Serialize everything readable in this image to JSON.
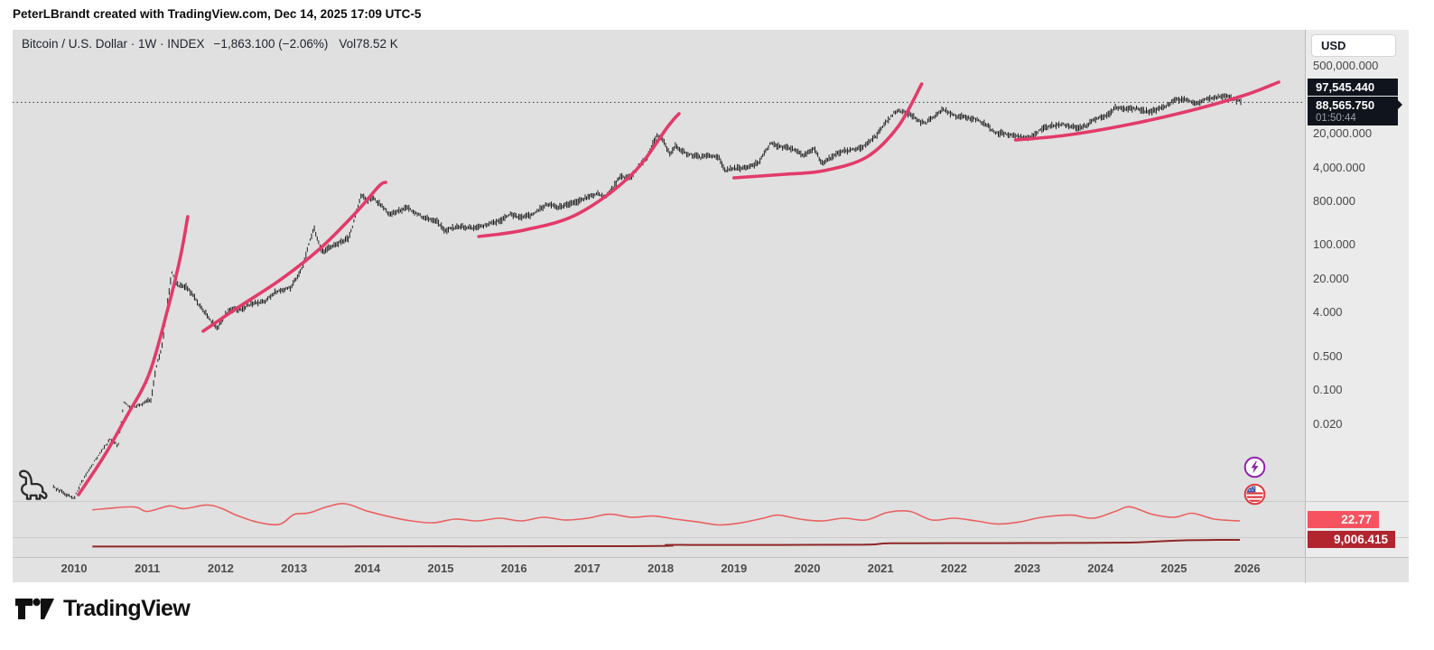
{
  "header": {
    "attribution": "PeterLBrandt created with TradingView.com, Dec 14, 2025 17:09 UTC-5"
  },
  "legend": {
    "title": "Bitcoin / U.S. Dollar · 1W · INDEX",
    "change": "−1,863.100 (−2.06%)",
    "volume_label": "Vol",
    "volume_value": "78.52 K"
  },
  "price_axis": {
    "currency_button": "USD",
    "ticks": [
      {
        "label": "500,000.000",
        "value": 500000
      },
      {
        "label": "20,000.000",
        "value": 20000
      },
      {
        "label": "4,000.000",
        "value": 4000
      },
      {
        "label": "800.000",
        "value": 800
      },
      {
        "label": "100.000",
        "value": 100
      },
      {
        "label": "20.000",
        "value": 20
      },
      {
        "label": "4.000",
        "value": 4
      },
      {
        "label": "0.500",
        "value": 0.5
      },
      {
        "label": "0.100",
        "value": 0.1
      },
      {
        "label": "0.020",
        "value": 0.02
      }
    ]
  },
  "price_labels": {
    "upper": "97,545.440",
    "current": "88,565.750",
    "countdown": "01:50:44"
  },
  "time_axis": {
    "years": [
      "2010",
      "2011",
      "2012",
      "2013",
      "2014",
      "2015",
      "2016",
      "2017",
      "2018",
      "2019",
      "2020",
      "2021",
      "2022",
      "2023",
      "2024",
      "2025",
      "2026"
    ]
  },
  "indicator_badges": {
    "first": "22.77",
    "second": "9,006.415"
  },
  "footer": {
    "brand": "TradingView"
  },
  "chart_data": {
    "type": "line",
    "style": "weekly ohlc bars, log scale",
    "title": "Bitcoin / U.S. Dollar · 1W · INDEX",
    "xlabel": "year",
    "ylabel": "USD",
    "x_range": [
      2009.6,
      2026.5
    ],
    "y_scale": "log",
    "y_ticks": [
      500000,
      20000,
      4000,
      800,
      100,
      20,
      4,
      0.5,
      0.1,
      0.02
    ],
    "current_price": 88565.75,
    "upper_price_label": 97545.44,
    "countdown": "01:50:44",
    "series_color": "#1c1c1c",
    "series": [
      [
        2009.72,
        0.001
      ],
      [
        2009.9,
        0.0007
      ],
      [
        2010.0,
        0.0006
      ],
      [
        2010.08,
        0.0011
      ],
      [
        2010.2,
        0.0022
      ],
      [
        2010.35,
        0.005
      ],
      [
        2010.5,
        0.01
      ],
      [
        2010.6,
        0.007
      ],
      [
        2010.68,
        0.06
      ],
      [
        2010.75,
        0.045
      ],
      [
        2010.9,
        0.05
      ],
      [
        2011.05,
        0.065
      ],
      [
        2011.12,
        0.3
      ],
      [
        2011.2,
        0.8
      ],
      [
        2011.33,
        27
      ],
      [
        2011.42,
        15
      ],
      [
        2011.55,
        13
      ],
      [
        2011.7,
        6
      ],
      [
        2011.95,
        1.9
      ],
      [
        2012.1,
        4.4
      ],
      [
        2012.3,
        4.9
      ],
      [
        2012.45,
        6.5
      ],
      [
        2012.6,
        6.8
      ],
      [
        2012.75,
        11
      ],
      [
        2012.95,
        13
      ],
      [
        2013.1,
        30
      ],
      [
        2013.27,
        230
      ],
      [
        2013.38,
        70
      ],
      [
        2013.55,
        100
      ],
      [
        2013.75,
        140
      ],
      [
        2013.92,
        1150
      ],
      [
        2014.0,
        770
      ],
      [
        2014.08,
        950
      ],
      [
        2014.3,
        440
      ],
      [
        2014.55,
        590
      ],
      [
        2014.75,
        380
      ],
      [
        2014.95,
        310
      ],
      [
        2015.05,
        200
      ],
      [
        2015.25,
        245
      ],
      [
        2015.45,
        225
      ],
      [
        2015.6,
        255
      ],
      [
        2015.8,
        310
      ],
      [
        2015.95,
        430
      ],
      [
        2016.1,
        380
      ],
      [
        2016.25,
        415
      ],
      [
        2016.45,
        700
      ],
      [
        2016.6,
        610
      ],
      [
        2016.8,
        730
      ],
      [
        2017.0,
        980
      ],
      [
        2017.15,
        1170
      ],
      [
        2017.25,
        950
      ],
      [
        2017.45,
        2600
      ],
      [
        2017.6,
        2450
      ],
      [
        2017.7,
        4400
      ],
      [
        2017.8,
        5800
      ],
      [
        2017.95,
        19000
      ],
      [
        2018.05,
        13500
      ],
      [
        2018.12,
        7500
      ],
      [
        2018.2,
        11000
      ],
      [
        2018.35,
        7800
      ],
      [
        2018.55,
        6400
      ],
      [
        2018.62,
        7300
      ],
      [
        2018.8,
        6300
      ],
      [
        2018.88,
        3500
      ],
      [
        2019.0,
        3800
      ],
      [
        2019.2,
        4000
      ],
      [
        2019.35,
        5300
      ],
      [
        2019.5,
        12800
      ],
      [
        2019.62,
        10500
      ],
      [
        2019.75,
        10200
      ],
      [
        2019.95,
        7200
      ],
      [
        2020.1,
        9500
      ],
      [
        2020.2,
        4900
      ],
      [
        2020.35,
        6800
      ],
      [
        2020.5,
        9100
      ],
      [
        2020.65,
        9200
      ],
      [
        2020.8,
        11500
      ],
      [
        2020.95,
        19000
      ],
      [
        2021.1,
        38000
      ],
      [
        2021.2,
        57000
      ],
      [
        2021.3,
        59000
      ],
      [
        2021.45,
        46000
      ],
      [
        2021.55,
        34000
      ],
      [
        2021.62,
        33500
      ],
      [
        2021.75,
        47000
      ],
      [
        2021.85,
        65000
      ],
      [
        2022.0,
        47000
      ],
      [
        2022.15,
        43000
      ],
      [
        2022.3,
        39000
      ],
      [
        2022.45,
        30000
      ],
      [
        2022.55,
        21000
      ],
      [
        2022.7,
        20000
      ],
      [
        2022.9,
        16500
      ],
      [
        2023.05,
        17000
      ],
      [
        2023.2,
        25000
      ],
      [
        2023.35,
        29000
      ],
      [
        2023.5,
        30500
      ],
      [
        2023.65,
        26500
      ],
      [
        2023.8,
        29000
      ],
      [
        2023.95,
        42000
      ],
      [
        2024.1,
        48000
      ],
      [
        2024.2,
        68000
      ],
      [
        2024.35,
        64000
      ],
      [
        2024.5,
        66000
      ],
      [
        2024.65,
        56000
      ],
      [
        2024.8,
        64000
      ],
      [
        2024.9,
        75000
      ],
      [
        2025.0,
        97000
      ],
      [
        2025.1,
        104000
      ],
      [
        2025.2,
        96000
      ],
      [
        2025.3,
        84000
      ],
      [
        2025.45,
        104000
      ],
      [
        2025.55,
        109000
      ],
      [
        2025.65,
        118000
      ],
      [
        2025.75,
        113000
      ],
      [
        2025.85,
        98000
      ],
      [
        2025.93,
        88565
      ]
    ],
    "annotations": {
      "description": "hand-drawn parabolic advance curves",
      "color": "#e23b69",
      "curves": [
        [
          [
            2010.06,
            0.0007
          ],
          [
            2010.41,
            0.0044
          ],
          [
            2010.71,
            0.028
          ],
          [
            2011.02,
            0.21
          ],
          [
            2011.27,
            4.3
          ],
          [
            2011.45,
            56
          ],
          [
            2011.55,
            386
          ]
        ],
        [
          [
            2011.76,
            1.66
          ],
          [
            2012.25,
            5.3
          ],
          [
            2012.81,
            19
          ],
          [
            2013.36,
            86
          ],
          [
            2013.85,
            478
          ],
          [
            2014.16,
            1660
          ],
          [
            2014.25,
            1970
          ]
        ],
        [
          [
            2015.52,
            150
          ],
          [
            2016.13,
            203
          ],
          [
            2016.87,
            438
          ],
          [
            2017.61,
            2900
          ],
          [
            2018.1,
            28200
          ],
          [
            2018.25,
            51400
          ]
        ],
        [
          [
            2019.0,
            2440
          ],
          [
            2019.7,
            2900
          ],
          [
            2020.23,
            3440
          ],
          [
            2020.81,
            6550
          ],
          [
            2021.24,
            28200
          ],
          [
            2021.56,
            212000
          ]
        ],
        [
          [
            2022.84,
            14800
          ],
          [
            2023.52,
            18400
          ],
          [
            2024.38,
            30700
          ],
          [
            2025.25,
            61000
          ],
          [
            2025.98,
            126700
          ],
          [
            2026.43,
            231000
          ]
        ]
      ]
    },
    "indicators": [
      {
        "name": "indicator-1",
        "last_value": 22.77,
        "color": "#ea6161",
        "points": [
          [
            2010.25,
            0.8
          ],
          [
            2010.8,
            0.9
          ],
          [
            2011.0,
            0.75
          ],
          [
            2011.3,
            0.93
          ],
          [
            2011.5,
            0.84
          ],
          [
            2011.8,
            0.96
          ],
          [
            2012.0,
            0.86
          ],
          [
            2012.2,
            0.64
          ],
          [
            2012.5,
            0.4
          ],
          [
            2012.8,
            0.33
          ],
          [
            2013.0,
            0.65
          ],
          [
            2013.2,
            0.7
          ],
          [
            2013.45,
            0.9
          ],
          [
            2013.7,
            1.0
          ],
          [
            2014.0,
            0.76
          ],
          [
            2014.3,
            0.58
          ],
          [
            2014.6,
            0.44
          ],
          [
            2014.9,
            0.38
          ],
          [
            2015.2,
            0.5
          ],
          [
            2015.5,
            0.44
          ],
          [
            2015.8,
            0.53
          ],
          [
            2016.1,
            0.44
          ],
          [
            2016.4,
            0.56
          ],
          [
            2016.7,
            0.47
          ],
          [
            2017.0,
            0.53
          ],
          [
            2017.3,
            0.66
          ],
          [
            2017.6,
            0.56
          ],
          [
            2017.9,
            0.6
          ],
          [
            2018.2,
            0.5
          ],
          [
            2018.5,
            0.41
          ],
          [
            2018.8,
            0.31
          ],
          [
            2019.1,
            0.38
          ],
          [
            2019.4,
            0.53
          ],
          [
            2019.6,
            0.63
          ],
          [
            2019.9,
            0.5
          ],
          [
            2020.2,
            0.44
          ],
          [
            2020.5,
            0.53
          ],
          [
            2020.8,
            0.47
          ],
          [
            2021.1,
            0.72
          ],
          [
            2021.4,
            0.75
          ],
          [
            2021.7,
            0.47
          ],
          [
            2022.0,
            0.53
          ],
          [
            2022.3,
            0.44
          ],
          [
            2022.6,
            0.34
          ],
          [
            2022.9,
            0.41
          ],
          [
            2023.2,
            0.56
          ],
          [
            2023.6,
            0.63
          ],
          [
            2023.9,
            0.53
          ],
          [
            2024.2,
            0.75
          ],
          [
            2024.4,
            0.9
          ],
          [
            2024.7,
            0.66
          ],
          [
            2025.0,
            0.56
          ],
          [
            2025.25,
            0.69
          ],
          [
            2025.55,
            0.5
          ],
          [
            2025.9,
            0.44
          ]
        ]
      },
      {
        "name": "indicator-2",
        "last_value": 9006.415,
        "color": "#8f2727",
        "points": [
          [
            2010.25,
            0.07
          ],
          [
            2017.4,
            0.12
          ],
          [
            2018.1,
            0.3
          ],
          [
            2018.6,
            0.3
          ],
          [
            2020.7,
            0.33
          ],
          [
            2021.15,
            0.52
          ],
          [
            2022.5,
            0.55
          ],
          [
            2023.5,
            0.57
          ],
          [
            2024.4,
            0.62
          ],
          [
            2024.8,
            0.8
          ],
          [
            2025.2,
            0.95
          ],
          [
            2025.6,
            1.0
          ],
          [
            2025.9,
            1.0
          ]
        ]
      }
    ]
  }
}
